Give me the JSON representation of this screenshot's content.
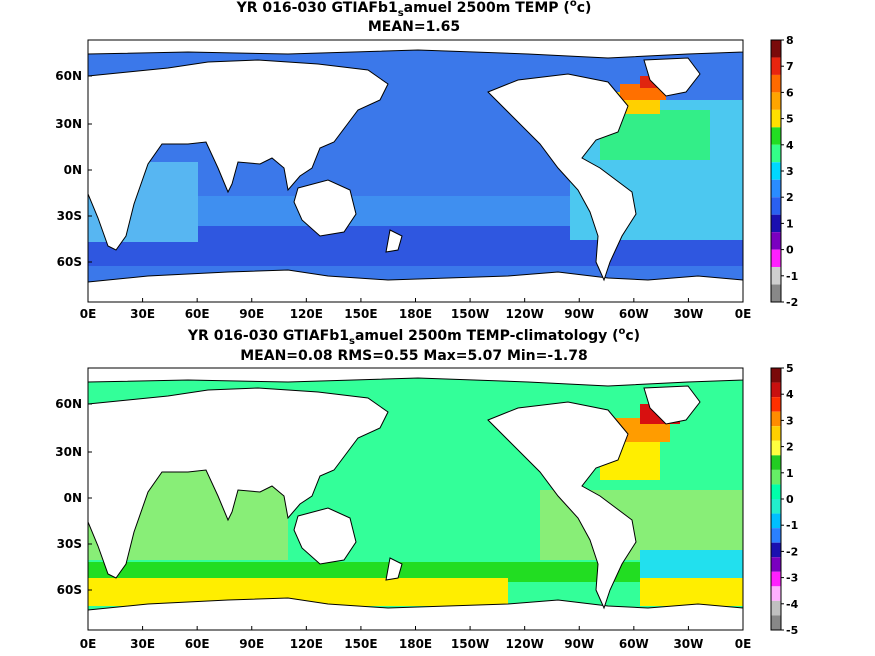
{
  "panels": [
    {
      "id": "temp",
      "title_pre": "YR 016-030 GTIAFb1",
      "title_sub": "s",
      "title_post": "amuel 2500m TEMP (",
      "title_sup": "o",
      "title_end": "c)",
      "stats": "MEAN=1.65",
      "colorbar": {
        "labels": [
          "8",
          "7",
          "6",
          "5",
          "4",
          "3",
          "2",
          "1",
          "0",
          "-1",
          "-2"
        ],
        "colors": [
          "#7a0a0a",
          "#e8250f",
          "#ff6a00",
          "#ffa500",
          "#ffe000",
          "#22dd22",
          "#33ff88",
          "#00d8ff",
          "#2a8cff",
          "#2a60f0",
          "#1a10b0",
          "#7a00c0",
          "#ff20ff",
          "#cfcfcf",
          "#888888"
        ]
      }
    },
    {
      "id": "anom",
      "title_pre": "YR 016-030 GTIAFb1",
      "title_sub": "s",
      "title_post": "amuel 2500m TEMP-climatology (",
      "title_sup": "o",
      "title_end": "c)",
      "stats": "MEAN=0.08   RMS=0.55   Max=5.07   Min=-1.78",
      "colorbar": {
        "labels": [
          "5",
          "4",
          "3",
          "2",
          "1",
          "0",
          "-1",
          "-2",
          "-3",
          "-4",
          "-5"
        ],
        "colors": [
          "#7a0a0a",
          "#c8100f",
          "#ff3000",
          "#ff8c00",
          "#ffd000",
          "#ffff40",
          "#22cc22",
          "#66ee66",
          "#00ffaa",
          "#22eecc",
          "#00bfff",
          "#2a80ff",
          "#1a10b0",
          "#7a00c0",
          "#ff20ff",
          "#ffb0ff",
          "#c0c0c0",
          "#888888"
        ]
      }
    }
  ],
  "x_ticks": [
    "0E",
    "30E",
    "60E",
    "90E",
    "120E",
    "150E",
    "180E",
    "150W",
    "120W",
    "90W",
    "60W",
    "30W",
    "0E"
  ],
  "y_ticks": [
    "60N",
    "30N",
    "0N",
    "30S",
    "60S"
  ],
  "map_colors": {
    "temp": {
      "ocean": "#3b78ea",
      "band_south": "#2f57e0",
      "band_mid": "#3f8ff0",
      "indian_west": "#57b6f2",
      "atlantic": "#4cc8f0",
      "atl_warm1": "#33ee88",
      "atl_warm2": "#ffd000",
      "atl_warm3": "#ff7000",
      "atl_hot": "#e0250f"
    },
    "anom": {
      "ocean": "#33ff99",
      "pale": "#88ee77",
      "green": "#22dd22",
      "yellow": "#ffee00",
      "orange": "#ff9c00",
      "red": "#d81010",
      "cyan": "#22e0ee",
      "teal": "#19c8ff"
    }
  }
}
